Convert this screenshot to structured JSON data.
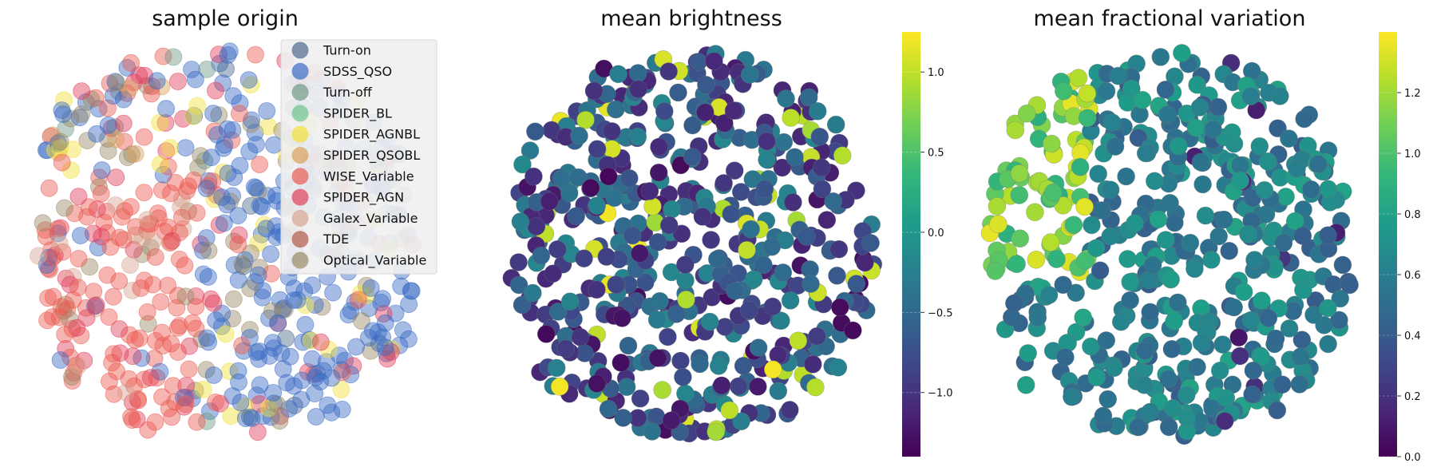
{
  "chart_data": [
    {
      "type": "scatter",
      "title": "sample origin",
      "legend_position": "top-right",
      "grid": false,
      "axes_visible": false,
      "series": [
        {
          "name": "Turn-on",
          "color": "#4c6a8c"
        },
        {
          "name": "SDSS_QSO",
          "color": "#3a6bc4"
        },
        {
          "name": "Turn-off",
          "color": "#6f9a88"
        },
        {
          "name": "SPIDER_BL",
          "color": "#6cc58c"
        },
        {
          "name": "SPIDER_AGNBL",
          "color": "#f2df3a"
        },
        {
          "name": "SPIDER_QSOBL",
          "color": "#d9a05a"
        },
        {
          "name": "WISE_Variable",
          "color": "#ea5b52"
        },
        {
          "name": "SPIDER_AGN",
          "color": "#e03e5a"
        },
        {
          "name": "Galex_Variable",
          "color": "#d6a590"
        },
        {
          "name": "TDE",
          "color": "#b05a48"
        },
        {
          "name": "Optical_Variable",
          "color": "#9a8a66"
        }
      ]
    },
    {
      "type": "scatter",
      "title": "mean brightness",
      "colormap": "viridis",
      "colorbar": {
        "min": -1.4,
        "max": 1.25,
        "ticks": [
          "1.0",
          "0.5",
          "0.0",
          "−0.5",
          "−1.0"
        ],
        "tick_values": [
          1.0,
          0.5,
          0.0,
          -0.5,
          -1.0
        ]
      },
      "grid": false,
      "axes_visible": false
    },
    {
      "type": "scatter",
      "title": "mean fractional variation",
      "colormap": "viridis",
      "colorbar": {
        "min": 0.0,
        "max": 1.4,
        "ticks": [
          "1.2",
          "1.0",
          "0.8",
          "0.6",
          "0.4",
          "0.2",
          "0.0"
        ],
        "tick_values": [
          1.2,
          1.0,
          0.8,
          0.6,
          0.4,
          0.2,
          0.0
        ]
      },
      "grid": false,
      "axes_visible": false
    }
  ],
  "colors": {
    "viridis": [
      "#440154",
      "#482878",
      "#3e4989",
      "#31688e",
      "#26828e",
      "#1f9e89",
      "#35b779",
      "#6ece58",
      "#b5de2b",
      "#fde725"
    ],
    "legend_bg": "#f0f0f0"
  }
}
